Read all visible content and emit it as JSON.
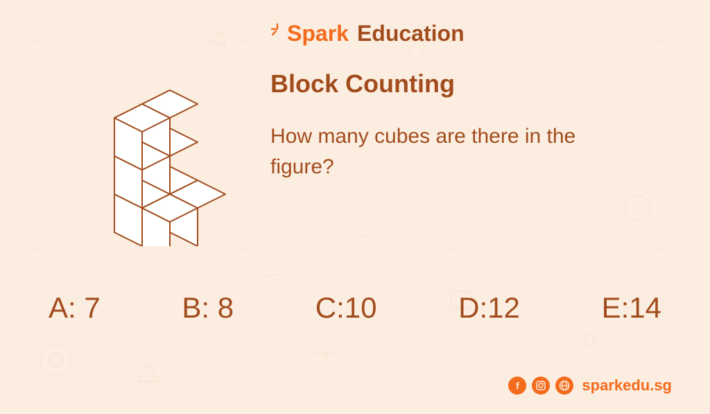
{
  "colors": {
    "background": "#fbeee0",
    "brand_primary": "#f36b1c",
    "brand_secondary": "#a24c1e",
    "title": "#a24c1e",
    "text": "#a24c1e",
    "cube_stroke": "#a24c1e",
    "cube_fill": "#ffffff",
    "answer_text": "#a24c1e",
    "footer": "#f36b1c"
  },
  "brand": {
    "word1": "Spark",
    "word2": "Education"
  },
  "title": "Block Counting",
  "question": "How many cubes are there in the figure?",
  "answers": [
    {
      "label": "A:",
      "value": "7"
    },
    {
      "label": "B:",
      "value": "8"
    },
    {
      "label": "C:",
      "value": "10"
    },
    {
      "label": "D:",
      "value": "12"
    },
    {
      "label": "E:",
      "value": "14"
    }
  ],
  "footer": {
    "url": "sparkedu.sg"
  },
  "cubes": {
    "stroke_width": 2,
    "iso_a": 40,
    "iso_b": 20,
    "height": 55
  }
}
